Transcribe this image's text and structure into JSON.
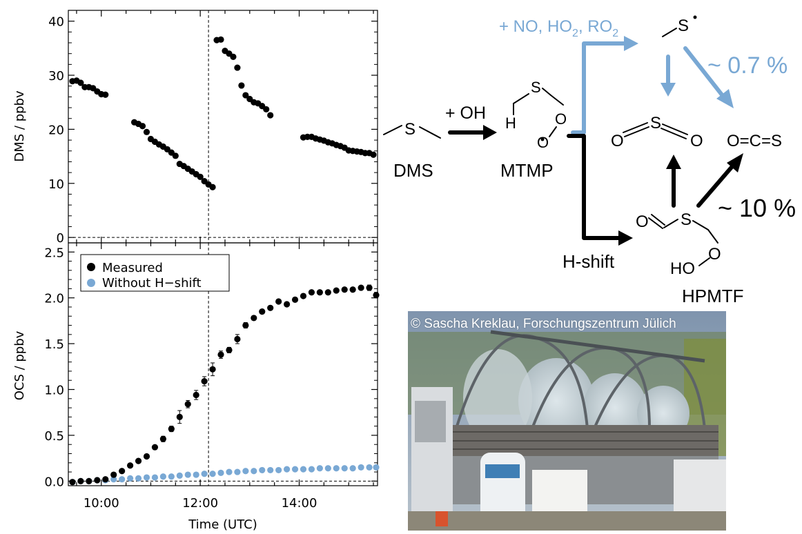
{
  "chart_data": [
    {
      "type": "scatter",
      "ylabel": "DMS  /  ppbv",
      "xlim": [
        "09:20",
        "15:35"
      ],
      "ylim": [
        -1,
        42
      ],
      "yticks": [
        0,
        10,
        20,
        30,
        40
      ],
      "grid": false,
      "reference_lines": {
        "vertical_x": "12:10",
        "horizontal_y": 0
      },
      "series": [
        {
          "color": "#000000",
          "points": [
            [
              "09:25",
              28.9
            ],
            [
              "09:30",
              29.0
            ],
            [
              "09:35",
              28.6
            ],
            [
              "09:40",
              27.8
            ],
            [
              "09:45",
              27.8
            ],
            [
              "09:50",
              27.6
            ],
            [
              "09:55",
              27.0
            ],
            [
              "10:00",
              26.5
            ],
            [
              "10:05",
              26.4
            ],
            [
              "10:40",
              21.3
            ],
            [
              "10:45",
              21.0
            ],
            [
              "10:50",
              20.6
            ],
            [
              "10:55",
              19.5
            ],
            [
              "11:00",
              18.2
            ],
            [
              "11:05",
              17.7
            ],
            [
              "11:10",
              17.2
            ],
            [
              "11:15",
              16.8
            ],
            [
              "11:20",
              16.3
            ],
            [
              "11:25",
              15.7
            ],
            [
              "11:30",
              15.1
            ],
            [
              "11:35",
              13.6
            ],
            [
              "11:40",
              13.2
            ],
            [
              "11:45",
              12.7
            ],
            [
              "11:50",
              12.2
            ],
            [
              "11:55",
              11.7
            ],
            [
              "12:00",
              11.2
            ],
            [
              "12:05",
              10.4
            ],
            [
              "12:10",
              9.8
            ],
            [
              "12:15",
              9.3
            ],
            [
              "12:20",
              36.5
            ],
            [
              "12:25",
              36.6
            ],
            [
              "12:30",
              34.5
            ],
            [
              "12:35",
              34.0
            ],
            [
              "12:40",
              33.4
            ],
            [
              "12:45",
              31.4
            ],
            [
              "12:50",
              28.1
            ],
            [
              "12:55",
              26.3
            ],
            [
              "13:00",
              25.6
            ],
            [
              "13:05",
              25.0
            ],
            [
              "13:10",
              24.8
            ],
            [
              "13:15",
              24.3
            ],
            [
              "13:20",
              23.7
            ],
            [
              "13:25",
              22.6
            ],
            [
              "14:05",
              18.5
            ],
            [
              "14:10",
              18.6
            ],
            [
              "14:15",
              18.6
            ],
            [
              "14:20",
              18.3
            ],
            [
              "14:25",
              18.1
            ],
            [
              "14:30",
              17.9
            ],
            [
              "14:35",
              17.6
            ],
            [
              "14:40",
              17.4
            ],
            [
              "14:45",
              17.1
            ],
            [
              "14:50",
              16.9
            ],
            [
              "14:55",
              16.6
            ],
            [
              "15:00",
              16.1
            ],
            [
              "15:05",
              16.0
            ],
            [
              "15:10",
              15.9
            ],
            [
              "15:15",
              15.8
            ],
            [
              "15:20",
              15.6
            ],
            [
              "15:25",
              15.6
            ],
            [
              "15:30",
              15.3
            ]
          ]
        }
      ]
    },
    {
      "type": "scatter",
      "xlabel": "Time  (UTC)",
      "ylabel": "OCS  /  ppbv",
      "xlim": [
        "09:20",
        "15:35"
      ],
      "ylim": [
        -0.05,
        2.6
      ],
      "xticks": [
        "10:00",
        "12:00",
        "14:00"
      ],
      "yticks": [
        0.0,
        0.5,
        1.0,
        1.5,
        2.0,
        2.5
      ],
      "grid": false,
      "legend": "top-left",
      "reference_lines": {
        "vertical_x": "12:10",
        "horizontal_y": 0
      },
      "series": [
        {
          "name": "Measured",
          "color": "#000000",
          "points": [
            [
              "09:25",
              -0.01
            ],
            [
              "09:35",
              0.0
            ],
            [
              "09:45",
              0.0
            ],
            [
              "09:55",
              0.01
            ],
            [
              "10:05",
              0.02
            ],
            [
              "10:15",
              0.07
            ],
            [
              "10:25",
              0.11
            ],
            [
              "10:35",
              0.17
            ],
            [
              "10:45",
              0.22
            ],
            [
              "10:55",
              0.27
            ],
            [
              "11:05",
              0.37
            ],
            [
              "11:15",
              0.46
            ],
            [
              "11:25",
              0.57
            ],
            [
              "11:35",
              0.7
            ],
            [
              "11:45",
              0.84
            ],
            [
              "11:55",
              0.94
            ],
            [
              "12:05",
              1.09
            ],
            [
              "12:15",
              1.22
            ],
            [
              "12:25",
              1.38
            ],
            [
              "12:35",
              1.43
            ],
            [
              "12:45",
              1.55
            ],
            [
              "12:55",
              1.7
            ],
            [
              "13:05",
              1.78
            ],
            [
              "13:15",
              1.85
            ],
            [
              "13:25",
              1.89
            ],
            [
              "13:35",
              1.96
            ],
            [
              "13:45",
              1.93
            ],
            [
              "13:55",
              1.98
            ],
            [
              "14:05",
              2.02
            ],
            [
              "14:15",
              2.06
            ],
            [
              "14:25",
              2.06
            ],
            [
              "14:35",
              2.06
            ],
            [
              "14:45",
              2.08
            ],
            [
              "14:55",
              2.09
            ],
            [
              "15:05",
              2.09
            ],
            [
              "15:15",
              2.11
            ],
            [
              "15:25",
              2.11
            ],
            [
              "15:35",
              2.03
            ]
          ],
          "errors": [
            0.02,
            0.02,
            0.02,
            0.02,
            0.02,
            0.02,
            0.02,
            0.02,
            0.02,
            0.02,
            0.02,
            0.03,
            0.03,
            0.07,
            0.04,
            0.05,
            0.05,
            0.07,
            0.04,
            0.03,
            0.05,
            0.03,
            0.02,
            0.02,
            0.02,
            0.02,
            0.02,
            0.02,
            0.02,
            0.02,
            0.02,
            0.02,
            0.02,
            0.02,
            0.02,
            0.02,
            0.03,
            0.03
          ]
        },
        {
          "name": "Without H−shift",
          "color": "#79a8d4",
          "points": [
            [
              "09:25",
              -0.01
            ],
            [
              "09:35",
              0.0
            ],
            [
              "09:45",
              0.0
            ],
            [
              "09:55",
              0.01
            ],
            [
              "10:05",
              0.01
            ],
            [
              "10:15",
              0.02
            ],
            [
              "10:25",
              0.02
            ],
            [
              "10:35",
              0.03
            ],
            [
              "10:45",
              0.03
            ],
            [
              "10:55",
              0.04
            ],
            [
              "11:05",
              0.04
            ],
            [
              "11:15",
              0.05
            ],
            [
              "11:25",
              0.05
            ],
            [
              "11:35",
              0.06
            ],
            [
              "11:45",
              0.07
            ],
            [
              "11:55",
              0.07
            ],
            [
              "12:05",
              0.08
            ],
            [
              "12:15",
              0.08
            ],
            [
              "12:25",
              0.09
            ],
            [
              "12:35",
              0.1
            ],
            [
              "12:45",
              0.1
            ],
            [
              "12:55",
              0.11
            ],
            [
              "13:05",
              0.11
            ],
            [
              "13:15",
              0.12
            ],
            [
              "13:25",
              0.12
            ],
            [
              "13:35",
              0.12
            ],
            [
              "13:45",
              0.13
            ],
            [
              "13:55",
              0.13
            ],
            [
              "14:05",
              0.13
            ],
            [
              "14:15",
              0.13
            ],
            [
              "14:25",
              0.14
            ],
            [
              "14:35",
              0.14
            ],
            [
              "14:45",
              0.14
            ],
            [
              "14:55",
              0.14
            ],
            [
              "15:05",
              0.14
            ],
            [
              "15:15",
              0.15
            ],
            [
              "15:25",
              0.15
            ],
            [
              "15:35",
              0.15
            ]
          ]
        }
      ]
    }
  ],
  "mechanism": {
    "oh_label": "+ OH",
    "no_label": "+ NO, HO",
    "no_sub": "2",
    "no_mid": ", RO",
    "no_sub2": "2",
    "dms_label": "DMS",
    "mtmp_label": "MTMP",
    "hpmtf_label": "HPMTF",
    "hshift_label": "H-shift",
    "pct_so2": "~ 0.7 %",
    "pct_ocs": "~ 10 %",
    "atom_s": "S",
    "atom_o": "O",
    "atom_h": "H",
    "atom_ho": "HO",
    "radical_dot": "•",
    "ocs_formula": "O=C=S",
    "colors": {
      "main": "#000000",
      "alt": "#79a8d4"
    }
  },
  "photo": {
    "credit": "© Sascha Kreklau, Forschungszentrum Jülich"
  }
}
